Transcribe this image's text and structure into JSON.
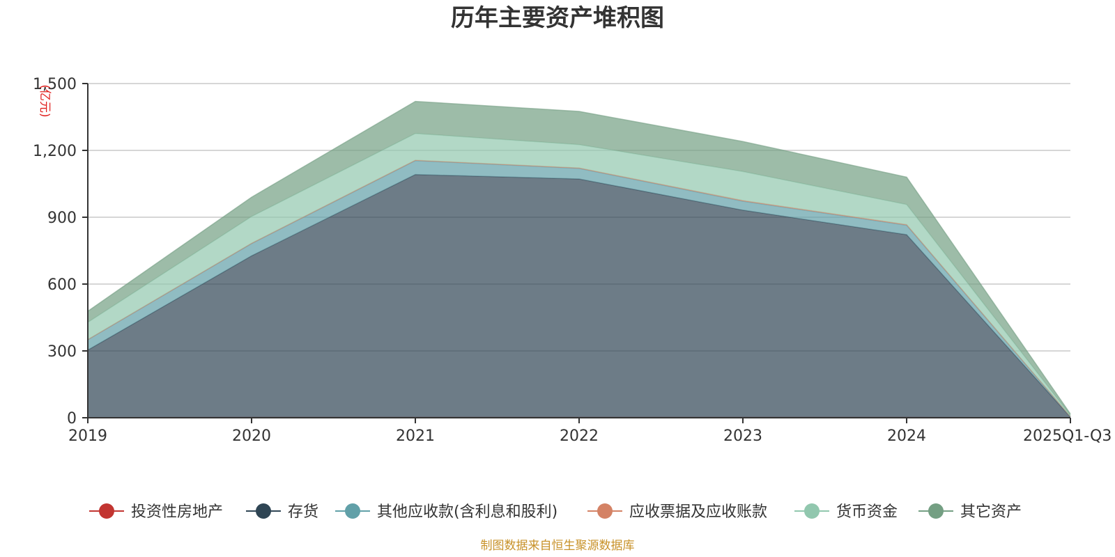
{
  "chart_data": {
    "type": "area",
    "stacked": true,
    "title": "历年主要资产堆积图",
    "unit": "(亿元)",
    "categories": [
      "2019",
      "2020",
      "2021",
      "2022",
      "2023",
      "2024",
      "2025Q1-Q3"
    ],
    "ylim": [
      0,
      1500
    ],
    "yticks": [
      0,
      300,
      600,
      900,
      1200,
      1500
    ],
    "ytick_labels": [
      "0",
      "300",
      "600",
      "900",
      "1,200",
      "1,500"
    ],
    "grid": true,
    "legend_position": "bottom",
    "series": [
      {
        "name": "投资性房地产",
        "color": "#c23531",
        "values": [
          1,
          2,
          2,
          2,
          2,
          2,
          0.5
        ]
      },
      {
        "name": "存货",
        "color": "#2f4554",
        "values": [
          303,
          725,
          1090,
          1070,
          930,
          820,
          3
        ]
      },
      {
        "name": "其他应收款(含利息和股利)",
        "color": "#61a0a8",
        "values": [
          46,
          55,
          62,
          47,
          40,
          42,
          1.5
        ]
      },
      {
        "name": "应收票据及应收账款",
        "color": "#d48265",
        "values": [
          1,
          1,
          2,
          2,
          3,
          3,
          0.5
        ]
      },
      {
        "name": "货币资金",
        "color": "#91c7ae",
        "values": [
          77,
          120,
          120,
          105,
          130,
          90,
          5
        ]
      },
      {
        "name": "其它资产",
        "color": "#749f83",
        "values": [
          50,
          87,
          144,
          149,
          135,
          123,
          7
        ]
      }
    ],
    "source": "制图数据来自恒生聚源数据库"
  }
}
